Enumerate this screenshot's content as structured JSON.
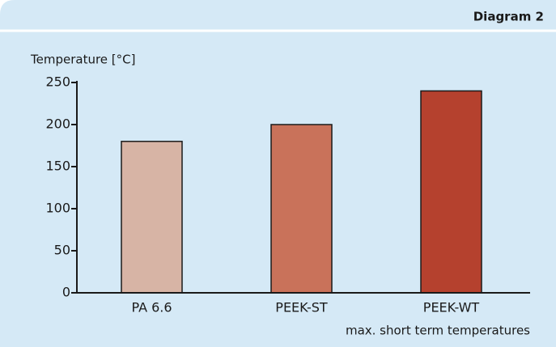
{
  "chart_data": {
    "type": "bar",
    "title": "Diagram 2",
    "y_label": "Temperature [°C]",
    "x_label": "max. short term temperatures",
    "categories": [
      "PA 6.6",
      "PEEK-ST",
      "PEEK-WT"
    ],
    "values": [
      180,
      200,
      240
    ],
    "colors": [
      "#d7b4a5",
      "#c9725a",
      "#b5412e"
    ],
    "ylim": [
      0,
      250
    ],
    "yticks": [
      0,
      50,
      100,
      150,
      200,
      250
    ],
    "grid": false
  }
}
